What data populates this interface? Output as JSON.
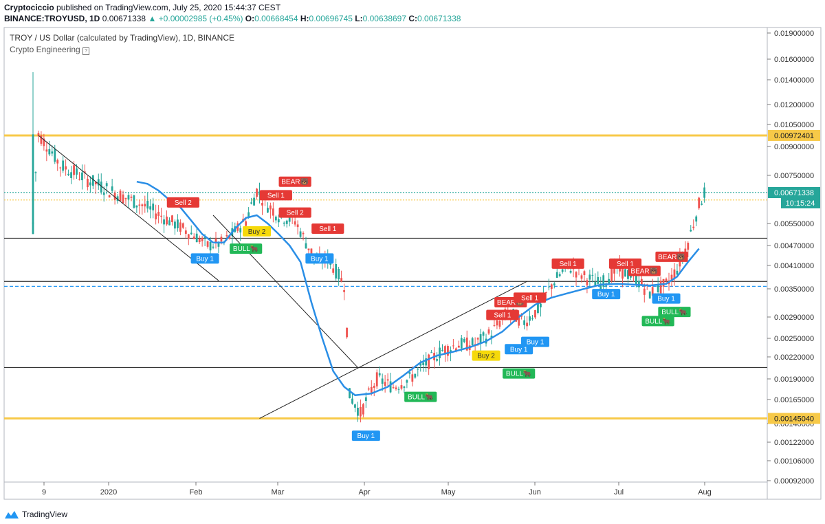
{
  "header": {
    "publisher": "Cryptociccio",
    "published_text": "published on TradingView.com, July 25, 2020 15:44:37 CEST",
    "symbol": "BINANCE:TROYUSD, 1D",
    "last": "0.00671338",
    "change_arrow": "▲",
    "change": "+0.00002985 (+0.45%)",
    "o_label": "O:",
    "o": "0.00668454",
    "h_label": "H:",
    "h": "0.00696745",
    "l_label": "L:",
    "l": "0.00638697",
    "c_label": "C:",
    "c": "0.00671338"
  },
  "overlay": {
    "title": "TROY / US Dollar (calculated by TradingView), 1D, BINANCE",
    "indicator": "Crypto Engineering",
    "indicator_icon": "info-icon"
  },
  "footer": {
    "brand": "TradingView",
    "logo": "tradingview-logo"
  },
  "colors": {
    "up": "#26a69a",
    "down": "#ef5350",
    "ma": "#2a8ee6",
    "level_yellow": "#f7c948",
    "current_line": "#26a69a",
    "dotted_blue": "#2196f3",
    "sell": "#e53935",
    "buy": "#2196f3",
    "bull": "#22b857",
    "buy2": "#f5d90a",
    "bear": "#e53935"
  },
  "chart_data": {
    "type": "candlestick",
    "x_ticks": [
      "9",
      "2020",
      "Feb",
      "Mar",
      "Apr",
      "May",
      "Jun",
      "Jul",
      "Aug"
    ],
    "y_ticks": [
      "0.01900000",
      "0.01600000",
      "0.01400000",
      "0.01200000",
      "0.01050000",
      "0.00900000",
      "0.00750000",
      "0.00550000",
      "0.00470000",
      "0.00410000",
      "0.00350000",
      "0.00290000",
      "0.00250000",
      "0.00220000",
      "0.00190000",
      "0.00165000",
      "0.00140000",
      "0.00122000",
      "0.00106000",
      "0.00092000"
    ],
    "price_labels": [
      {
        "value": "0.00972401",
        "color": "#f7c948"
      },
      {
        "value": "0.00671338",
        "color": "#26a69a",
        "countdown": "10:15:24"
      },
      {
        "value": "0.00145040",
        "color": "#f7c948"
      }
    ],
    "levels": [
      {
        "price": 0.00972401,
        "color": "#f7c948"
      },
      {
        "price": 0.0014504,
        "color": "#f7c948"
      },
      {
        "price": 0.00495,
        "color": "#333333"
      },
      {
        "price": 0.00368,
        "color": "#333333"
      },
      {
        "price": 0.00205,
        "color": "#333333"
      },
      {
        "price": 0.00356,
        "color": "#2196f3",
        "style": "dashed"
      },
      {
        "price": 0.00671338,
        "color": "#26a69a",
        "style": "dotted"
      },
      {
        "price": 0.0064,
        "color": "#f7c948",
        "style": "dotted"
      }
    ],
    "trendlines": [
      {
        "from": [
          2,
          0.00972
        ],
        "to": [
          68,
          0.0037
        ]
      },
      {
        "from": [
          66,
          0.0058
        ],
        "to": [
          119,
          0.00205
        ]
      },
      {
        "from": [
          83,
          0.00145
        ],
        "to": [
          181,
          0.00368
        ]
      }
    ],
    "moving_average": [
      [
        38,
        0.0072
      ],
      [
        42,
        0.0071
      ],
      [
        46,
        0.0068
      ],
      [
        50,
        0.0064
      ],
      [
        54,
        0.0061
      ],
      [
        58,
        0.0056
      ],
      [
        62,
        0.0051
      ],
      [
        66,
        0.0048
      ],
      [
        70,
        0.0048
      ],
      [
        74,
        0.0053
      ],
      [
        78,
        0.0057
      ],
      [
        82,
        0.0058
      ],
      [
        86,
        0.0055
      ],
      [
        90,
        0.0051
      ],
      [
        94,
        0.0047
      ],
      [
        98,
        0.0042
      ],
      [
        102,
        0.0032
      ],
      [
        106,
        0.0025
      ],
      [
        110,
        0.002
      ],
      [
        114,
        0.0018
      ],
      [
        118,
        0.0017
      ],
      [
        124,
        0.00172
      ],
      [
        130,
        0.0018
      ],
      [
        136,
        0.00195
      ],
      [
        142,
        0.00212
      ],
      [
        148,
        0.00222
      ],
      [
        154,
        0.00228
      ],
      [
        160,
        0.00235
      ],
      [
        166,
        0.00245
      ],
      [
        172,
        0.00262
      ],
      [
        178,
        0.0029
      ],
      [
        184,
        0.00315
      ],
      [
        190,
        0.0033
      ],
      [
        196,
        0.0034
      ],
      [
        202,
        0.0035
      ],
      [
        208,
        0.0036
      ],
      [
        214,
        0.00362
      ],
      [
        220,
        0.0036
      ],
      [
        226,
        0.00358
      ],
      [
        232,
        0.00362
      ],
      [
        236,
        0.0038
      ],
      [
        240,
        0.0042
      ],
      [
        244,
        0.0046
      ]
    ],
    "signals": [
      {
        "text": "Sell 2",
        "type": "sell",
        "x": 55,
        "price": 0.0063
      },
      {
        "text": "BEAR🐻",
        "type": "bear",
        "x": 96,
        "price": 0.0072
      },
      {
        "text": "Sell 1",
        "type": "sell",
        "x": 89,
        "price": 0.0066
      },
      {
        "text": "Sell 2",
        "type": "sell",
        "x": 96,
        "price": 0.0059
      },
      {
        "text": "Buy 2",
        "type": "buy2",
        "x": 82,
        "price": 0.0052
      },
      {
        "text": "Sell 1",
        "type": "sell",
        "x": 108,
        "price": 0.0053
      },
      {
        "text": "Buy 1",
        "type": "buy",
        "x": 63,
        "price": 0.0043
      },
      {
        "text": "BULL🐂",
        "type": "bull",
        "x": 78,
        "price": 0.0046
      },
      {
        "text": "Buy 1",
        "type": "buy",
        "x": 105,
        "price": 0.0043
      },
      {
        "text": "BULL🐂",
        "type": "bull",
        "x": 142,
        "price": 0.00168
      },
      {
        "text": "Buy 1",
        "type": "buy",
        "x": 122,
        "price": 0.00128
      },
      {
        "text": "BEAR🐻",
        "type": "bear",
        "x": 175,
        "price": 0.0032
      },
      {
        "text": "Sell 1",
        "type": "sell",
        "x": 182,
        "price": 0.0033
      },
      {
        "text": "Sell 1",
        "type": "sell",
        "x": 172,
        "price": 0.00294
      },
      {
        "text": "Buy 2",
        "type": "buy2",
        "x": 166,
        "price": 0.00222
      },
      {
        "text": "Buy 1",
        "type": "buy",
        "x": 178,
        "price": 0.00232
      },
      {
        "text": "Buy 1",
        "type": "buy",
        "x": 184,
        "price": 0.00244
      },
      {
        "text": "BULL🐂",
        "type": "bull",
        "x": 178,
        "price": 0.00197
      },
      {
        "text": "Sell 1",
        "type": "sell",
        "x": 196,
        "price": 0.00415
      },
      {
        "text": "Buy 1",
        "type": "buy",
        "x": 210,
        "price": 0.00338
      },
      {
        "text": "Sell 1",
        "type": "sell",
        "x": 217,
        "price": 0.00415
      },
      {
        "text": "BEAR🐻",
        "type": "bear",
        "x": 224,
        "price": 0.00395
      },
      {
        "text": "BEAR🐻",
        "type": "bear",
        "x": 234,
        "price": 0.00435
      },
      {
        "text": "Buy 1",
        "type": "buy",
        "x": 232,
        "price": 0.00328
      },
      {
        "text": "BULL🐂",
        "type": "bull",
        "x": 235,
        "price": 0.003
      },
      {
        "text": "BULL🐂",
        "type": "bull",
        "x": 229,
        "price": 0.00282
      }
    ],
    "candles": []
  }
}
